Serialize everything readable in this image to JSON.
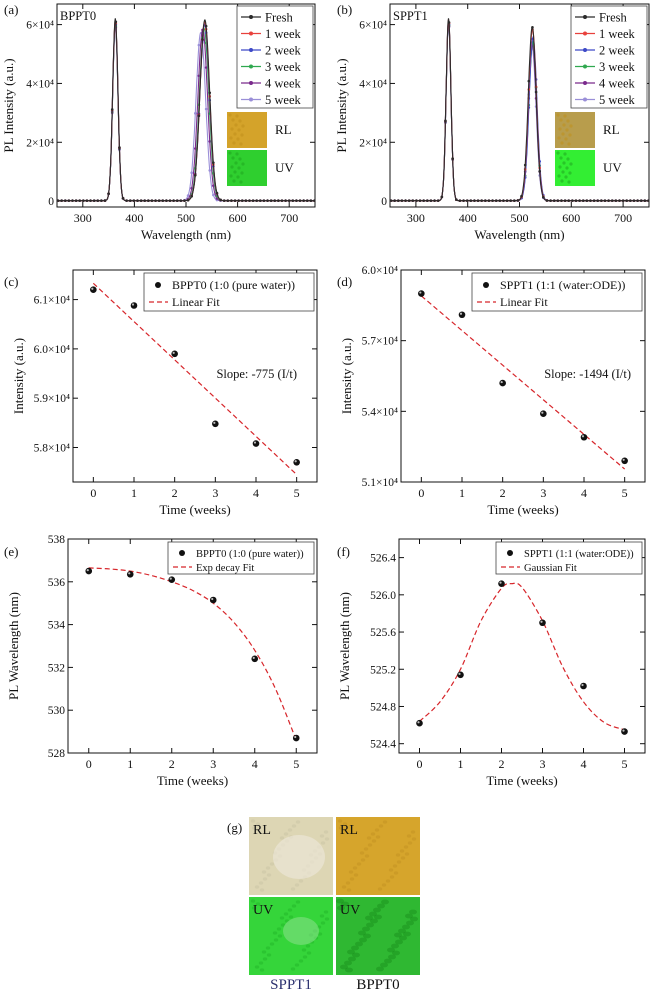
{
  "chart_data": [
    {
      "panel": "(a)",
      "type": "line",
      "inner_title": "BPPT0",
      "xlabel": "Wavelength (nm)",
      "ylabel": "PL Intensity (a.u.)",
      "xlim": [
        250,
        750
      ],
      "ylim": [
        -2000,
        67000
      ],
      "xticks": [
        300,
        400,
        500,
        600,
        700
      ],
      "yticks": [
        0,
        20000,
        40000,
        60000
      ],
      "ytick_labels": [
        "0",
        "2×10⁴",
        "4×10⁴",
        "6×10⁴"
      ],
      "legend_position": "top-right",
      "peaks": {
        "uv": {
          "center": 363,
          "fwhm": 12
        },
        "green": {
          "fwhm": 22
        }
      },
      "series": [
        {
          "name": "Fresh",
          "color": "#2b2b2b",
          "uv_peak": 62000,
          "green_center": 536.5,
          "green_peak": 61500
        },
        {
          "name": "1 week",
          "color": "#e8413c",
          "uv_peak": 61500,
          "green_center": 536.3,
          "green_peak": 60800
        },
        {
          "name": "2 week",
          "color": "#3d49c7",
          "uv_peak": 61000,
          "green_center": 536.1,
          "green_peak": 59900
        },
        {
          "name": "3 week",
          "color": "#2fa84f",
          "uv_peak": 60500,
          "green_center": 535.1,
          "green_peak": 58500
        },
        {
          "name": "4 week",
          "color": "#7a2a8c",
          "uv_peak": 60000,
          "green_center": 532.4,
          "green_peak": 58100
        },
        {
          "name": "5 week",
          "color": "#9a8fd8",
          "uv_peak": 59500,
          "green_center": 528.7,
          "green_peak": 57200
        }
      ],
      "insets": [
        {
          "label": "RL",
          "color": "#d4a32a"
        },
        {
          "label": "UV",
          "color": "#2fcf2f"
        }
      ]
    },
    {
      "panel": "(b)",
      "type": "line",
      "inner_title": "SPPT1",
      "xlabel": "Wavelength (nm)",
      "ylabel": "PL Intensity (a.u.)",
      "xlim": [
        250,
        750
      ],
      "ylim": [
        -2000,
        67000
      ],
      "xticks": [
        300,
        400,
        500,
        600,
        700
      ],
      "yticks": [
        0,
        20000,
        40000,
        60000
      ],
      "ytick_labels": [
        "0",
        "2×10⁴",
        "4×10⁴",
        "6×10⁴"
      ],
      "legend_position": "top-right",
      "peaks": {
        "uv": {
          "center": 363,
          "fwhm": 11
        },
        "green": {
          "fwhm": 18
        }
      },
      "series": [
        {
          "name": "Fresh",
          "color": "#2b2b2b",
          "uv_peak": 62000,
          "green_center": 524.6,
          "green_peak": 59000
        },
        {
          "name": "1 week",
          "color": "#e8413c",
          "uv_peak": 61700,
          "green_center": 525.1,
          "green_peak": 58200
        },
        {
          "name": "2 week",
          "color": "#3d49c7",
          "uv_peak": 61300,
          "green_center": 526.1,
          "green_peak": 55500
        },
        {
          "name": "3 week",
          "color": "#2fa84f",
          "uv_peak": 61000,
          "green_center": 525.7,
          "green_peak": 54000
        },
        {
          "name": "4 week",
          "color": "#7a2a8c",
          "uv_peak": 60700,
          "green_center": 525.0,
          "green_peak": 52900
        },
        {
          "name": "5 week",
          "color": "#9a8fd8",
          "uv_peak": 60400,
          "green_center": 524.5,
          "green_peak": 51800
        }
      ],
      "insets": [
        {
          "label": "RL",
          "color": "#b89d4c"
        },
        {
          "label": "UV",
          "color": "#33ee33"
        }
      ]
    },
    {
      "panel": "(c)",
      "type": "scatter",
      "xlabel": "Time (weeks)",
      "ylabel": "Intensity (a.u.)",
      "xlim": [
        -0.5,
        5.5
      ],
      "ylim": [
        57300,
        61600
      ],
      "xticks": [
        0,
        1,
        2,
        3,
        4,
        5
      ],
      "yticks": [
        58000,
        59000,
        60000,
        61000
      ],
      "ytick_labels": [
        "5.8×10⁴",
        "5.9×10⁴",
        "6.0×10⁴",
        "6.1×10⁴"
      ],
      "legend_position": "top-right",
      "series": [
        {
          "name": "BPPT0 (1:0 (pure water))",
          "kind": "points",
          "x": [
            0,
            1,
            2,
            3,
            4,
            5
          ],
          "y": [
            61200,
            60880,
            59900,
            58480,
            58080,
            57700
          ]
        },
        {
          "name": "Linear Fit",
          "kind": "fit",
          "x": [
            0,
            5
          ],
          "y": [
            61330,
            57450
          ]
        }
      ],
      "annotation": "Slope: -775 (I/t)"
    },
    {
      "panel": "(d)",
      "type": "scatter",
      "xlabel": "Time (weeks)",
      "ylabel": "Intensity (a.u.)",
      "xlim": [
        -0.5,
        5.5
      ],
      "ylim": [
        51000,
        60000
      ],
      "xticks": [
        0,
        1,
        2,
        3,
        4,
        5
      ],
      "yticks": [
        51000,
        54000,
        57000,
        60000
      ],
      "ytick_labels": [
        "5.1×10⁴",
        "5.4×10⁴",
        "5.7×10⁴",
        "6.0×10⁴"
      ],
      "legend_position": "top-right",
      "series": [
        {
          "name": "SPPT1 (1:1 (water:ODE))",
          "kind": "points",
          "x": [
            0,
            1,
            2,
            3,
            4,
            5
          ],
          "y": [
            59000,
            58100,
            55200,
            53900,
            52900,
            51900
          ]
        },
        {
          "name": "Linear Fit",
          "kind": "fit",
          "x": [
            0,
            5
          ],
          "y": [
            58900,
            51550
          ]
        }
      ],
      "annotation": "Slope: -1494 (I/t)"
    },
    {
      "panel": "(e)",
      "type": "scatter",
      "xlabel": "Time (weeks)",
      "ylabel": "PL Wavelength (nm)",
      "xlim": [
        -0.5,
        5.5
      ],
      "ylim": [
        528,
        538
      ],
      "xticks": [
        0,
        1,
        2,
        3,
        4,
        5
      ],
      "yticks": [
        528,
        530,
        532,
        534,
        536,
        538
      ],
      "ytick_labels": [
        "528",
        "530",
        "532",
        "534",
        "536",
        "538"
      ],
      "legend_position": "top-right",
      "series": [
        {
          "name": "BPPT0 (1:0 (pure water))",
          "kind": "points",
          "x": [
            0,
            1,
            2,
            3,
            4,
            5
          ],
          "y": [
            536.5,
            536.35,
            536.1,
            535.15,
            532.4,
            528.7
          ]
        },
        {
          "name": "Exp decay Fit",
          "kind": "fit",
          "x": [
            0,
            0.5,
            1,
            1.5,
            2,
            2.5,
            3,
            3.5,
            4,
            4.5,
            5
          ],
          "y": [
            536.65,
            536.6,
            536.5,
            536.3,
            536.0,
            535.6,
            535.0,
            534.1,
            532.8,
            531.0,
            528.6
          ]
        }
      ]
    },
    {
      "panel": "(f)",
      "type": "scatter",
      "xlabel": "Time (weeks)",
      "ylabel": "PL Wavelength (nm)",
      "xlim": [
        -0.5,
        5.5
      ],
      "ylim": [
        524.3,
        526.6
      ],
      "xticks": [
        0,
        1,
        2,
        3,
        4,
        5
      ],
      "yticks": [
        524.4,
        524.8,
        525.2,
        525.6,
        526.0,
        526.4
      ],
      "ytick_labels": [
        "524.4",
        "524.8",
        "525.2",
        "525.6",
        "526.0",
        "526.4"
      ],
      "legend_position": "top-right",
      "series": [
        {
          "name": "SPPT1 (1:1 (water:ODE))",
          "kind": "points",
          "x": [
            0,
            1,
            2,
            3,
            4,
            5
          ],
          "y": [
            524.62,
            525.14,
            526.12,
            525.7,
            525.02,
            524.53
          ]
        },
        {
          "name": "Gaussian Fit",
          "kind": "fit",
          "x": [
            0,
            0.5,
            1,
            1.5,
            2,
            2.25,
            2.5,
            3,
            3.5,
            4,
            4.5,
            5
          ],
          "y": [
            524.64,
            524.85,
            525.2,
            525.72,
            526.07,
            526.12,
            526.08,
            525.72,
            525.22,
            524.85,
            524.63,
            524.55
          ]
        }
      ]
    }
  ],
  "figure_labels": [
    "(a)",
    "(b)",
    "(c)",
    "(d)",
    "(e)",
    "(f)",
    "(g)"
  ],
  "photo_grid": {
    "panel": "(g)",
    "cells": [
      {
        "label": "RL",
        "color": "#ddd6b4"
      },
      {
        "label": "RL",
        "color": "#d6a52c"
      },
      {
        "label": "UV",
        "color": "#35d53a"
      },
      {
        "label": "UV",
        "color": "#2fb832"
      }
    ],
    "columns": [
      {
        "label": "SPPT1",
        "color": "#2a2f6e"
      },
      {
        "label": "BPPT0",
        "color": "#111111"
      }
    ]
  }
}
